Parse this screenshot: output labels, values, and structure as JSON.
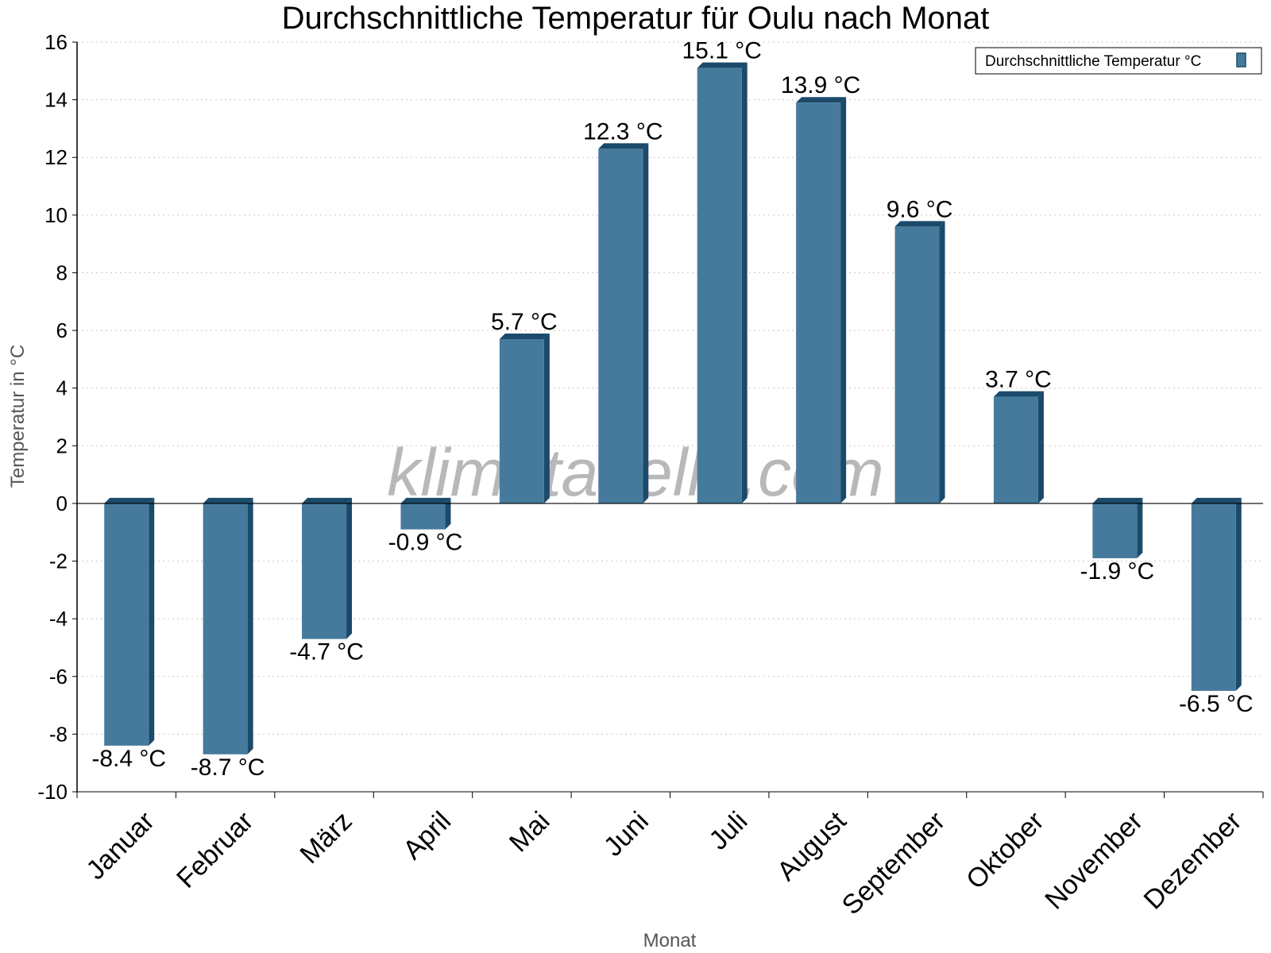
{
  "chart_data": {
    "type": "bar",
    "title": "Durchschnittliche Temperatur für Oulu nach Monat",
    "xlabel": "Monat",
    "ylabel": "Temperatur in °C",
    "ylim": [
      -10,
      16
    ],
    "yticks": [
      16,
      14,
      12,
      10,
      8,
      6,
      4,
      2,
      0,
      -2,
      -4,
      -6,
      -8,
      -10
    ],
    "categories": [
      "Januar",
      "Februar",
      "März",
      "April",
      "Mai",
      "Juni",
      "Juli",
      "August",
      "September",
      "Oktober",
      "November",
      "Dezember"
    ],
    "series": [
      {
        "name": "Durchschnittliche Temperatur °C",
        "values": [
          -8.4,
          -8.7,
          -4.7,
          -0.9,
          5.7,
          12.3,
          15.1,
          13.9,
          9.6,
          3.7,
          -1.9,
          -6.5
        ],
        "labels": [
          "-8.4 °C",
          "-8.7 °C",
          "-4.7 °C",
          "-0.9 °C",
          "5.7 °C",
          "12.3 °C",
          "15.1 °C",
          "13.9 °C",
          "9.6 °C",
          "3.7 °C",
          "-1.9 °C",
          "-6.5 °C"
        ],
        "color": "#467a9c",
        "side_color": "#1b4a6b"
      }
    ],
    "grid": true,
    "legend": "top-right",
    "watermark": "klimatabelle.com"
  }
}
